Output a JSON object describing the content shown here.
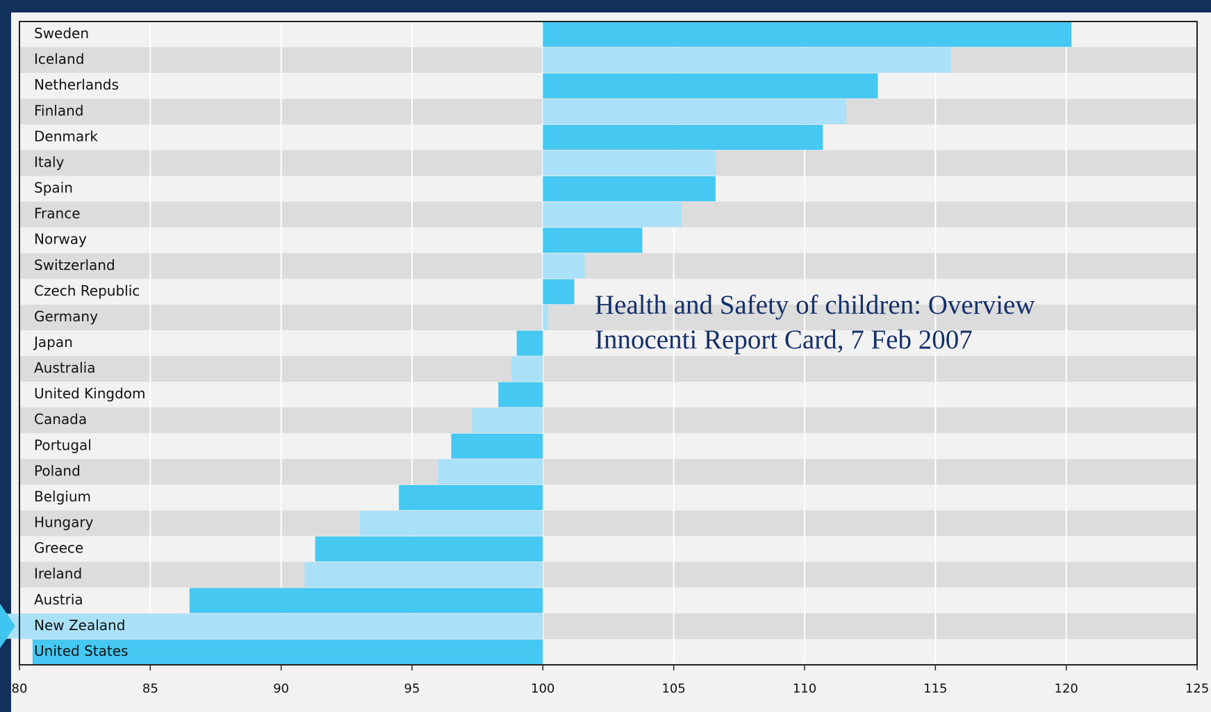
{
  "chart_data": {
    "type": "bar",
    "orientation": "horizontal",
    "annotation": [
      "Health and Safety of children:  Overview",
      "Innocenti Report Card, 7 Feb 2007"
    ],
    "categories": [
      "Sweden",
      "Iceland",
      "Netherlands",
      "Finland",
      "Denmark",
      "Italy",
      "Spain",
      "France",
      "Norway",
      "Switzerland",
      "Czech Republic",
      "Germany",
      "Japan",
      "Australia",
      "United Kingdom",
      "Canada",
      "Portugal",
      "Poland",
      "Belgium",
      "Hungary",
      "Greece",
      "Ireland",
      "Austria",
      "New Zealand",
      "United States"
    ],
    "values": [
      120.2,
      115.6,
      112.8,
      111.6,
      110.7,
      106.6,
      106.6,
      105.3,
      103.8,
      101.6,
      101.2,
      100.2,
      99.0,
      98.8,
      98.3,
      97.3,
      96.5,
      96.0,
      94.5,
      93.0,
      91.3,
      90.9,
      86.5,
      79.3,
      80.5
    ],
    "colors": [
      "#45c8f2",
      "#aae1f9"
    ],
    "baseline": 100,
    "xlim": [
      80,
      125
    ],
    "xticks": [
      80,
      85,
      90,
      95,
      100,
      105,
      110,
      115,
      120,
      125
    ],
    "grid": true
  }
}
